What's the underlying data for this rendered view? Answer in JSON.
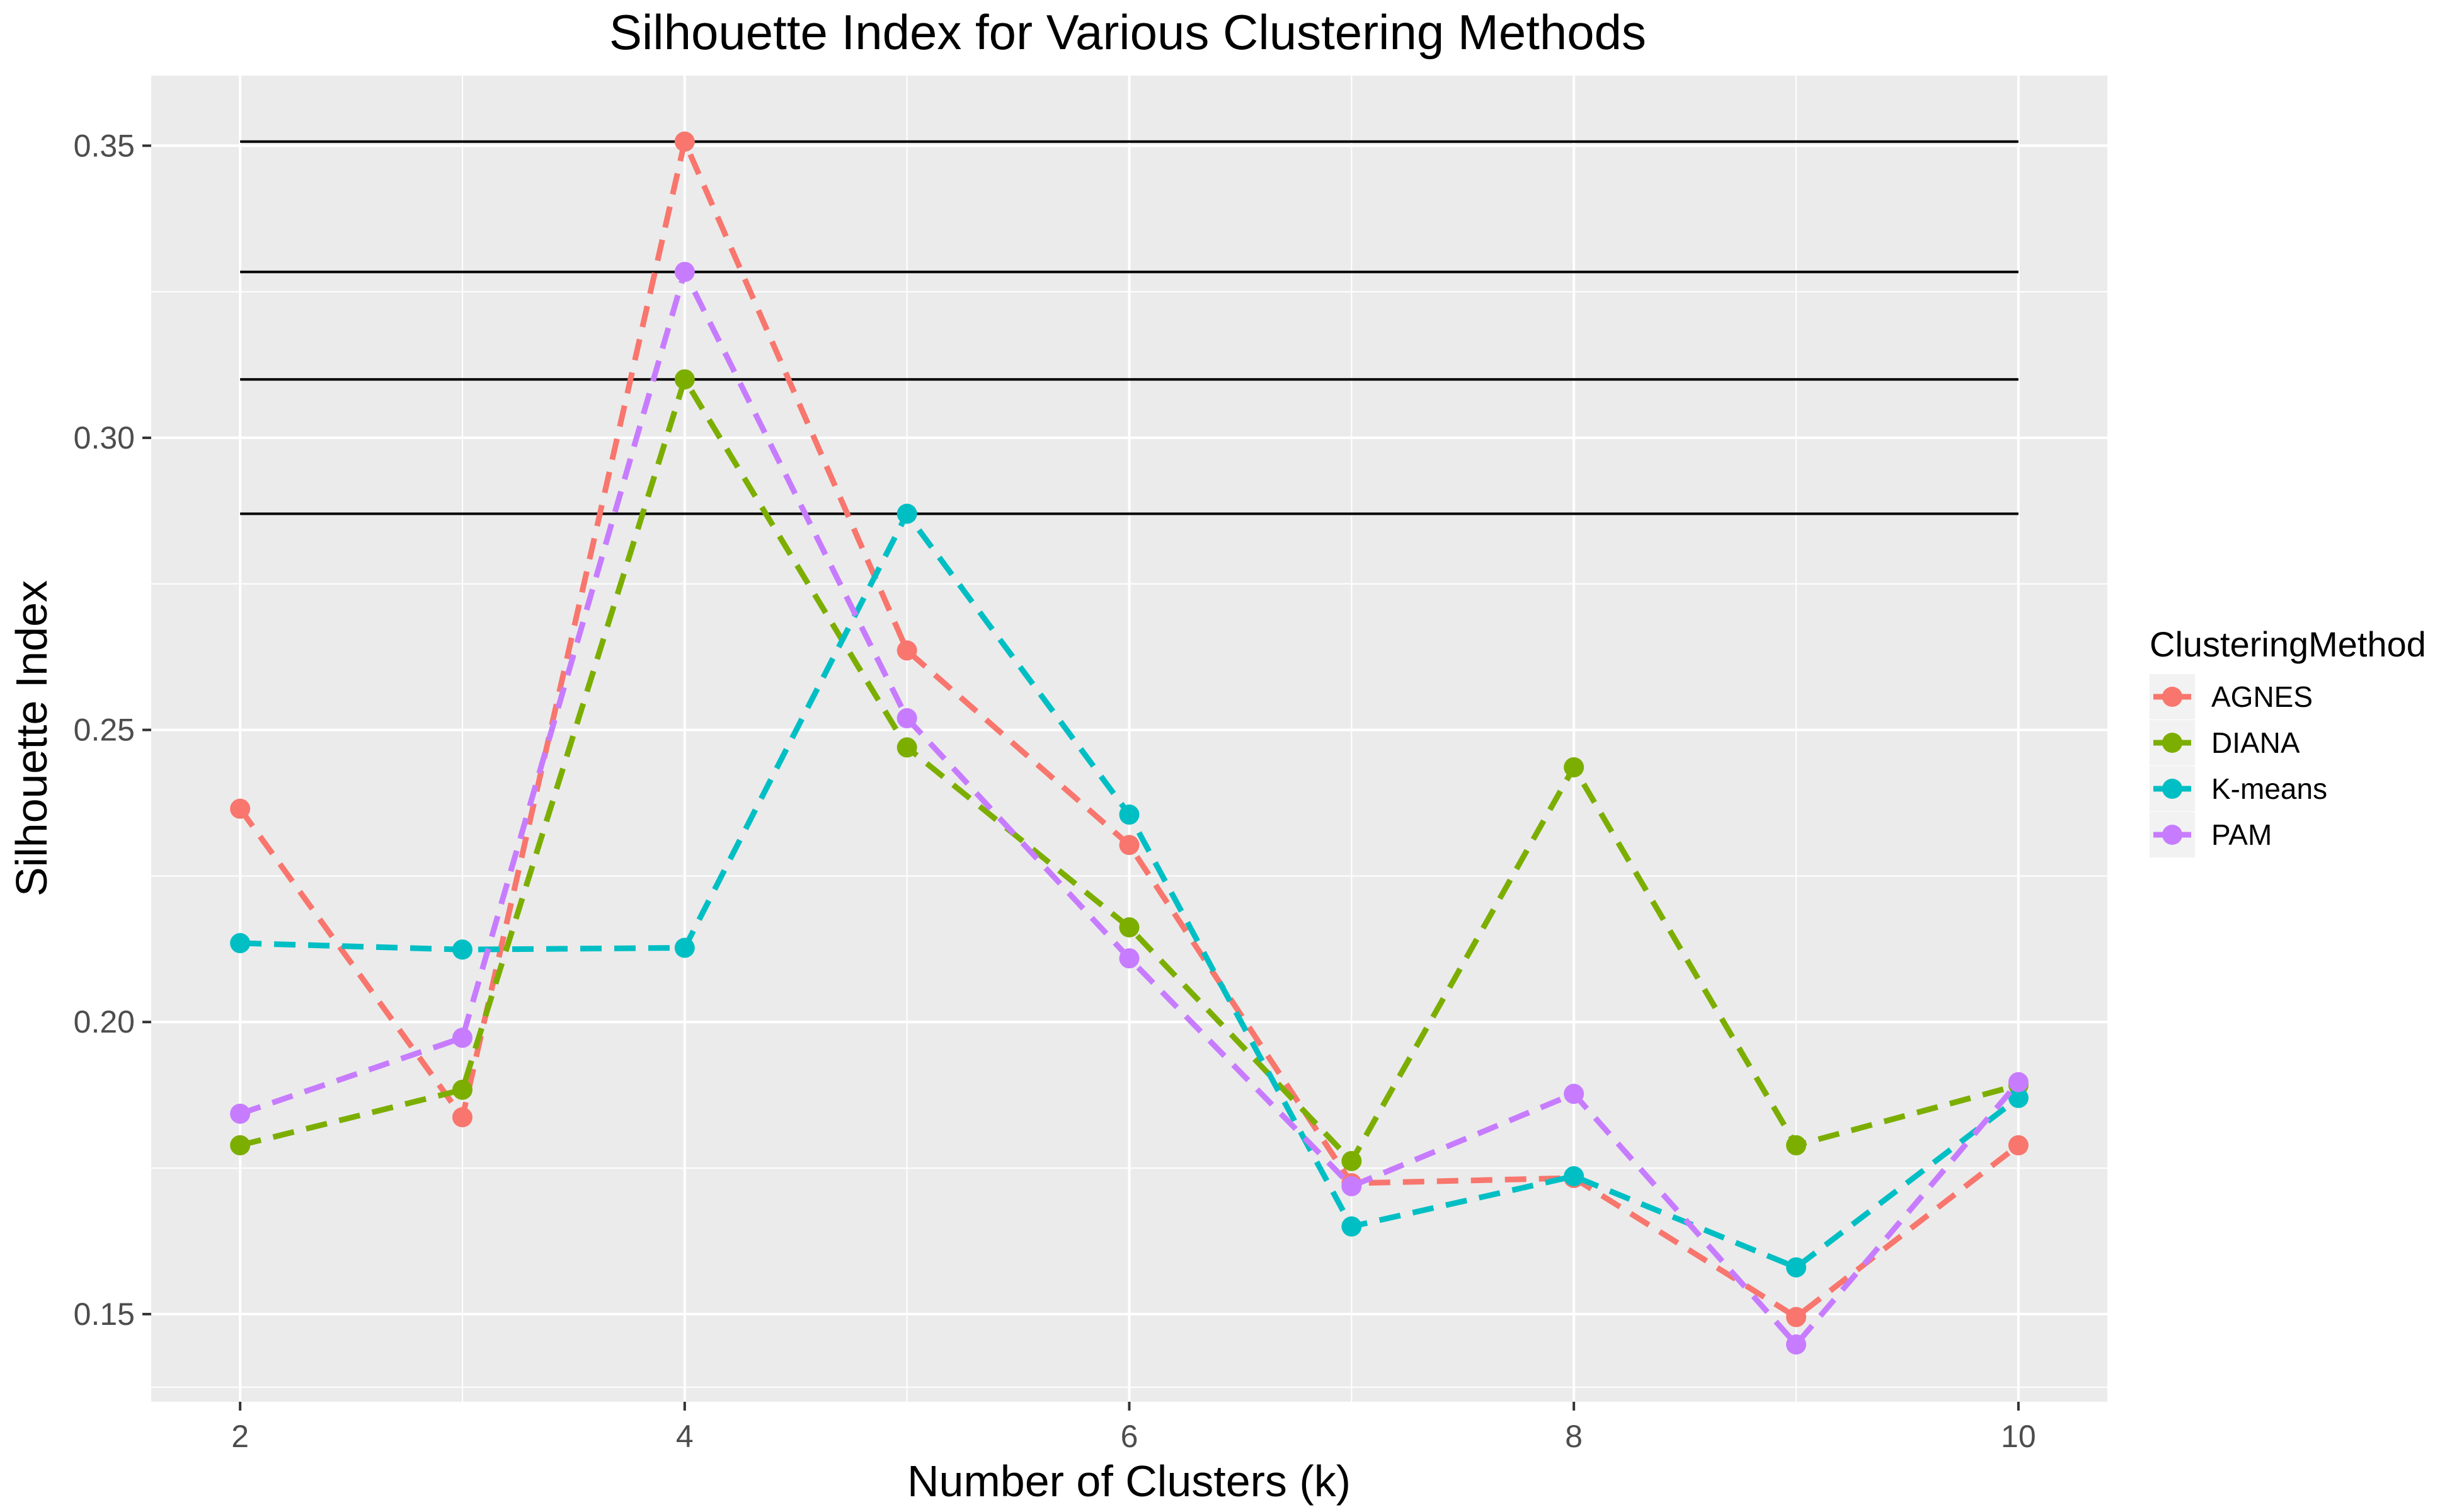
{
  "chart_data": {
    "type": "line",
    "title": "Silhouette Index for Various Clustering Methods",
    "xlabel": "Number of Clusters (k)",
    "ylabel": "Silhouette Index",
    "x": [
      2,
      3,
      4,
      5,
      6,
      7,
      8,
      9,
      10
    ],
    "xticks": [
      "2",
      "4",
      "6",
      "8",
      "10"
    ],
    "xlim": [
      1.6,
      10.4
    ],
    "yticks": [
      "0.15",
      "0.20",
      "0.25",
      "0.30",
      "0.35"
    ],
    "ylim": [
      0.135,
      0.362
    ],
    "line_style": "dashed",
    "grid": true,
    "legend": {
      "title": "ClusteringMethod",
      "position": "right"
    },
    "series": [
      {
        "name": "AGNES",
        "color": "#F8766D",
        "values": [
          0.2365,
          0.1837,
          0.3507,
          0.2636,
          0.2303,
          0.1724,
          0.1733,
          0.1495,
          0.1789
        ]
      },
      {
        "name": "DIANA",
        "color": "#7CAE00",
        "values": [
          0.1789,
          0.1884,
          0.31,
          0.247,
          0.2162,
          0.1762,
          0.2436,
          0.1789,
          0.1892
        ]
      },
      {
        "name": "K-means",
        "color": "#00BFC4",
        "values": [
          0.2135,
          0.2124,
          0.2127,
          0.287,
          0.2355,
          0.165,
          0.1736,
          0.158,
          0.187
        ]
      },
      {
        "name": "PAM",
        "color": "#C77CFF",
        "values": [
          0.1843,
          0.1973,
          0.3284,
          0.252,
          0.2109,
          0.1719,
          0.1877,
          0.1448,
          0.1897
        ]
      }
    ],
    "reference_lines": [
      0.3507,
      0.3284,
      0.31,
      0.287
    ],
    "reference_line_range": [
      2,
      10
    ],
    "reference_line_color": "#000000"
  }
}
